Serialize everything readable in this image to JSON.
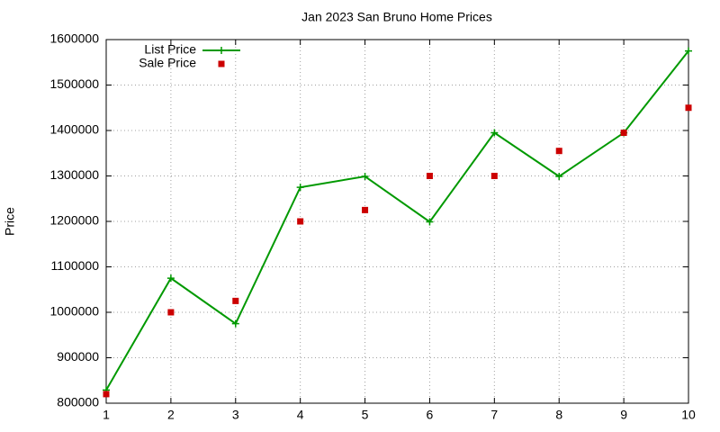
{
  "chart_data": {
    "type": "line",
    "title": "Jan 2023 San Bruno Home Prices",
    "y_label": "Price",
    "x": [
      1,
      2,
      3,
      4,
      5,
      6,
      7,
      8,
      9,
      10
    ],
    "series": [
      {
        "name": "List Price",
        "color": "#009900",
        "mode": "lines+markers",
        "values": [
          829000,
          1075000,
          975000,
          1275000,
          1299000,
          1199000,
          1395000,
          1299000,
          1395000,
          1575000
        ]
      },
      {
        "name": "Sale Price",
        "color": "#cc0000",
        "mode": "markers",
        "values": [
          820000,
          1000000,
          1025000,
          1200000,
          1225000,
          1300000,
          1300000,
          1355000,
          1395000,
          1450000
        ]
      }
    ],
    "xlim": [
      1,
      10
    ],
    "xticks": [
      1,
      2,
      3,
      4,
      5,
      6,
      7,
      8,
      9,
      10
    ],
    "ylim": [
      800000,
      1600000
    ],
    "yticks": [
      800000,
      900000,
      1000000,
      1100000,
      1200000,
      1300000,
      1400000,
      1500000,
      1600000
    ],
    "grid": true,
    "legend": "top-left"
  }
}
